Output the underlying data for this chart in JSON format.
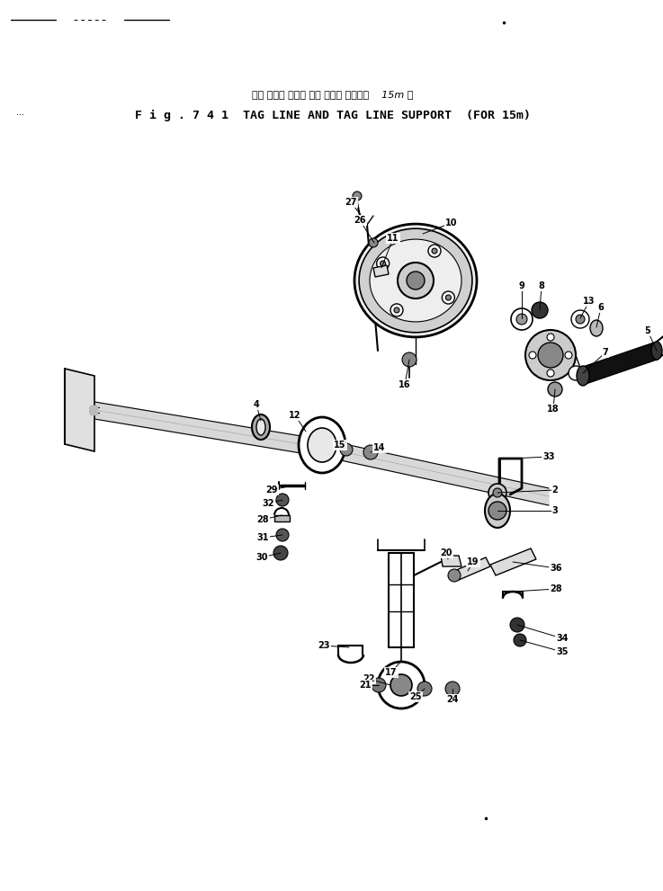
{
  "bg_color": "#ffffff",
  "title_japanese": "タグ ライン および タグ ライン サポート    15m 用",
  "title_english": "F i g . 7 4 1  TAG LINE AND TAG LINE SUPPORT  (FOR 15m)",
  "fig_width": 7.37,
  "fig_height": 9.91
}
